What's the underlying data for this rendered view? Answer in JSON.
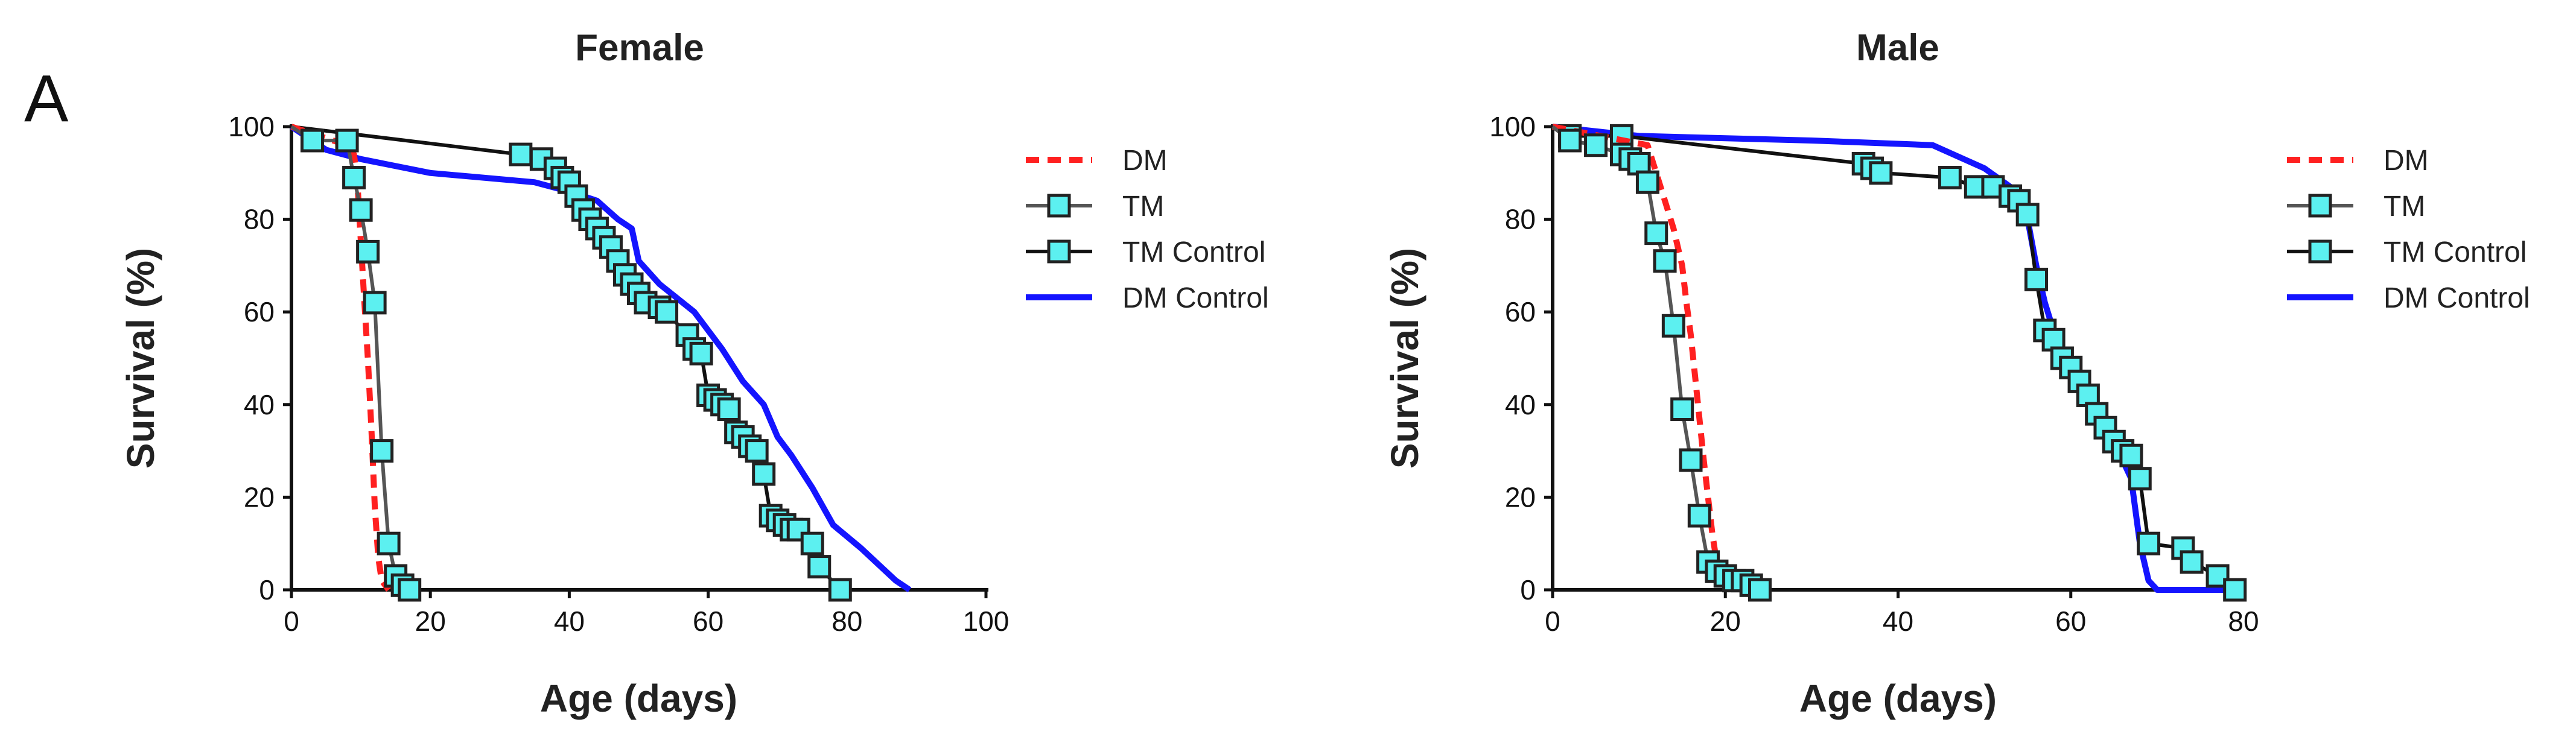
{
  "figure": {
    "panel_label": "A"
  },
  "chart_data": [
    {
      "type": "line",
      "title": "Female",
      "xlabel": "Age (days)",
      "ylabel": "Survival (%)",
      "xlim": [
        0,
        100
      ],
      "ylim": [
        0,
        100
      ],
      "xticks": [
        "0",
        "20",
        "40",
        "60",
        "80",
        "100"
      ],
      "yticks": [
        "0",
        "20",
        "40",
        "60",
        "80",
        "100"
      ],
      "legend_position": "right",
      "series": [
        {
          "name": "DM",
          "style": "dashed",
          "color": "#ff2020",
          "marker": "none",
          "x": [
            0,
            8,
            9,
            9.5,
            10,
            10.5,
            11,
            11.5,
            12,
            12.5,
            13,
            14
          ],
          "y": [
            100,
            96,
            94,
            88,
            75,
            62,
            50,
            35,
            18,
            7,
            2,
            0
          ]
        },
        {
          "name": "TM",
          "style": "solid",
          "color": "#555555",
          "marker": "square",
          "marker_fill": "#5cf0f0",
          "x": [
            0,
            3,
            8,
            9,
            10,
            11,
            12,
            13,
            14,
            15,
            16,
            17
          ],
          "y": [
            100,
            97,
            97,
            89,
            82,
            73,
            62,
            30,
            10,
            3,
            1,
            0
          ]
        },
        {
          "name": "TM Control",
          "style": "solid",
          "color": "#111111",
          "marker": "square",
          "marker_fill": "#5cf0f0",
          "x": [
            0,
            33,
            36,
            38,
            39,
            40,
            41,
            42,
            43,
            44,
            45,
            46,
            47,
            48,
            49,
            50,
            51,
            53,
            54,
            57,
            58,
            59,
            60,
            61,
            62,
            63,
            64,
            65,
            66,
            67,
            68,
            69,
            70,
            71,
            72,
            73,
            75,
            76,
            79
          ],
          "y": [
            100,
            94,
            93,
            91,
            89,
            88,
            85,
            82,
            80,
            78,
            76,
            74,
            71,
            68,
            66,
            64,
            62,
            61,
            60,
            55,
            52,
            51,
            42,
            41,
            40,
            39,
            34,
            33,
            31,
            30,
            25,
            16,
            15,
            14,
            13,
            13,
            10,
            5,
            0
          ]
        },
        {
          "name": "DM Control",
          "style": "solid",
          "color": "#1414ff",
          "marker": "none",
          "x": [
            0,
            3,
            5,
            10,
            20,
            35,
            40,
            44,
            47,
            49,
            50,
            53,
            58,
            62,
            65,
            68,
            70,
            72,
            75,
            78,
            82,
            87,
            89
          ],
          "y": [
            100,
            97,
            95,
            93,
            90,
            88,
            86,
            84,
            80,
            78,
            71,
            66,
            60,
            52,
            45,
            40,
            33,
            29,
            22,
            14,
            9,
            2,
            0
          ]
        }
      ]
    },
    {
      "type": "line",
      "title": "Male",
      "xlabel": "Age (days)",
      "ylabel": "Survival (%)",
      "xlim": [
        0,
        80
      ],
      "ylim": [
        0,
        100
      ],
      "xticks": [
        "0",
        "20",
        "40",
        "60",
        "80"
      ],
      "yticks": [
        "0",
        "20",
        "40",
        "60",
        "80",
        "100"
      ],
      "legend_position": "right",
      "series": [
        {
          "name": "DM",
          "style": "dashed",
          "color": "#ff2020",
          "marker": "none",
          "x": [
            0,
            11,
            12,
            13,
            14,
            15,
            15.5,
            16,
            16.5,
            17,
            17.5,
            18,
            18.5,
            19,
            20,
            21
          ],
          "y": [
            100,
            96,
            90,
            84,
            78,
            70,
            62,
            55,
            46,
            37,
            28,
            20,
            12,
            6,
            2,
            0
          ]
        },
        {
          "name": "TM",
          "style": "solid",
          "color": "#555555",
          "marker": "square",
          "marker_fill": "#5cf0f0",
          "x": [
            0,
            2,
            5,
            8,
            9,
            10,
            11,
            12,
            13,
            14,
            15,
            16,
            17,
            18,
            19,
            20,
            21,
            22,
            23,
            24
          ],
          "y": [
            100,
            97,
            96,
            94,
            93,
            92,
            88,
            77,
            71,
            57,
            39,
            28,
            16,
            6,
            4,
            3,
            2,
            2,
            1,
            0
          ]
        },
        {
          "name": "TM Control",
          "style": "solid",
          "color": "#111111",
          "marker": "square",
          "marker_fill": "#5cf0f0",
          "x": [
            0,
            2,
            8,
            36,
            37,
            38,
            46,
            49,
            51,
            53,
            54,
            55,
            56,
            57,
            58,
            59,
            60,
            61,
            62,
            63,
            64,
            65,
            66,
            67,
            68,
            69,
            73,
            74,
            77,
            79
          ],
          "y": [
            100,
            98,
            98,
            92,
            91,
            90,
            89,
            87,
            87,
            85,
            84,
            81,
            67,
            56,
            54,
            50,
            48,
            45,
            42,
            38,
            35,
            32,
            30,
            29,
            24,
            10,
            9,
            6,
            3,
            0
          ]
        },
        {
          "name": "DM Control",
          "style": "solid",
          "color": "#1414ff",
          "marker": "none",
          "x": [
            0,
            10,
            30,
            44,
            50,
            53,
            55,
            56,
            57,
            58,
            59,
            60,
            61,
            62,
            63,
            64,
            65,
            66,
            67,
            68,
            69,
            70,
            79
          ],
          "y": [
            100,
            98,
            97,
            96,
            91,
            87,
            80,
            70,
            62,
            56,
            52,
            49,
            44,
            41,
            38,
            34,
            31,
            28,
            24,
            10,
            2,
            0,
            0
          ]
        }
      ]
    }
  ]
}
